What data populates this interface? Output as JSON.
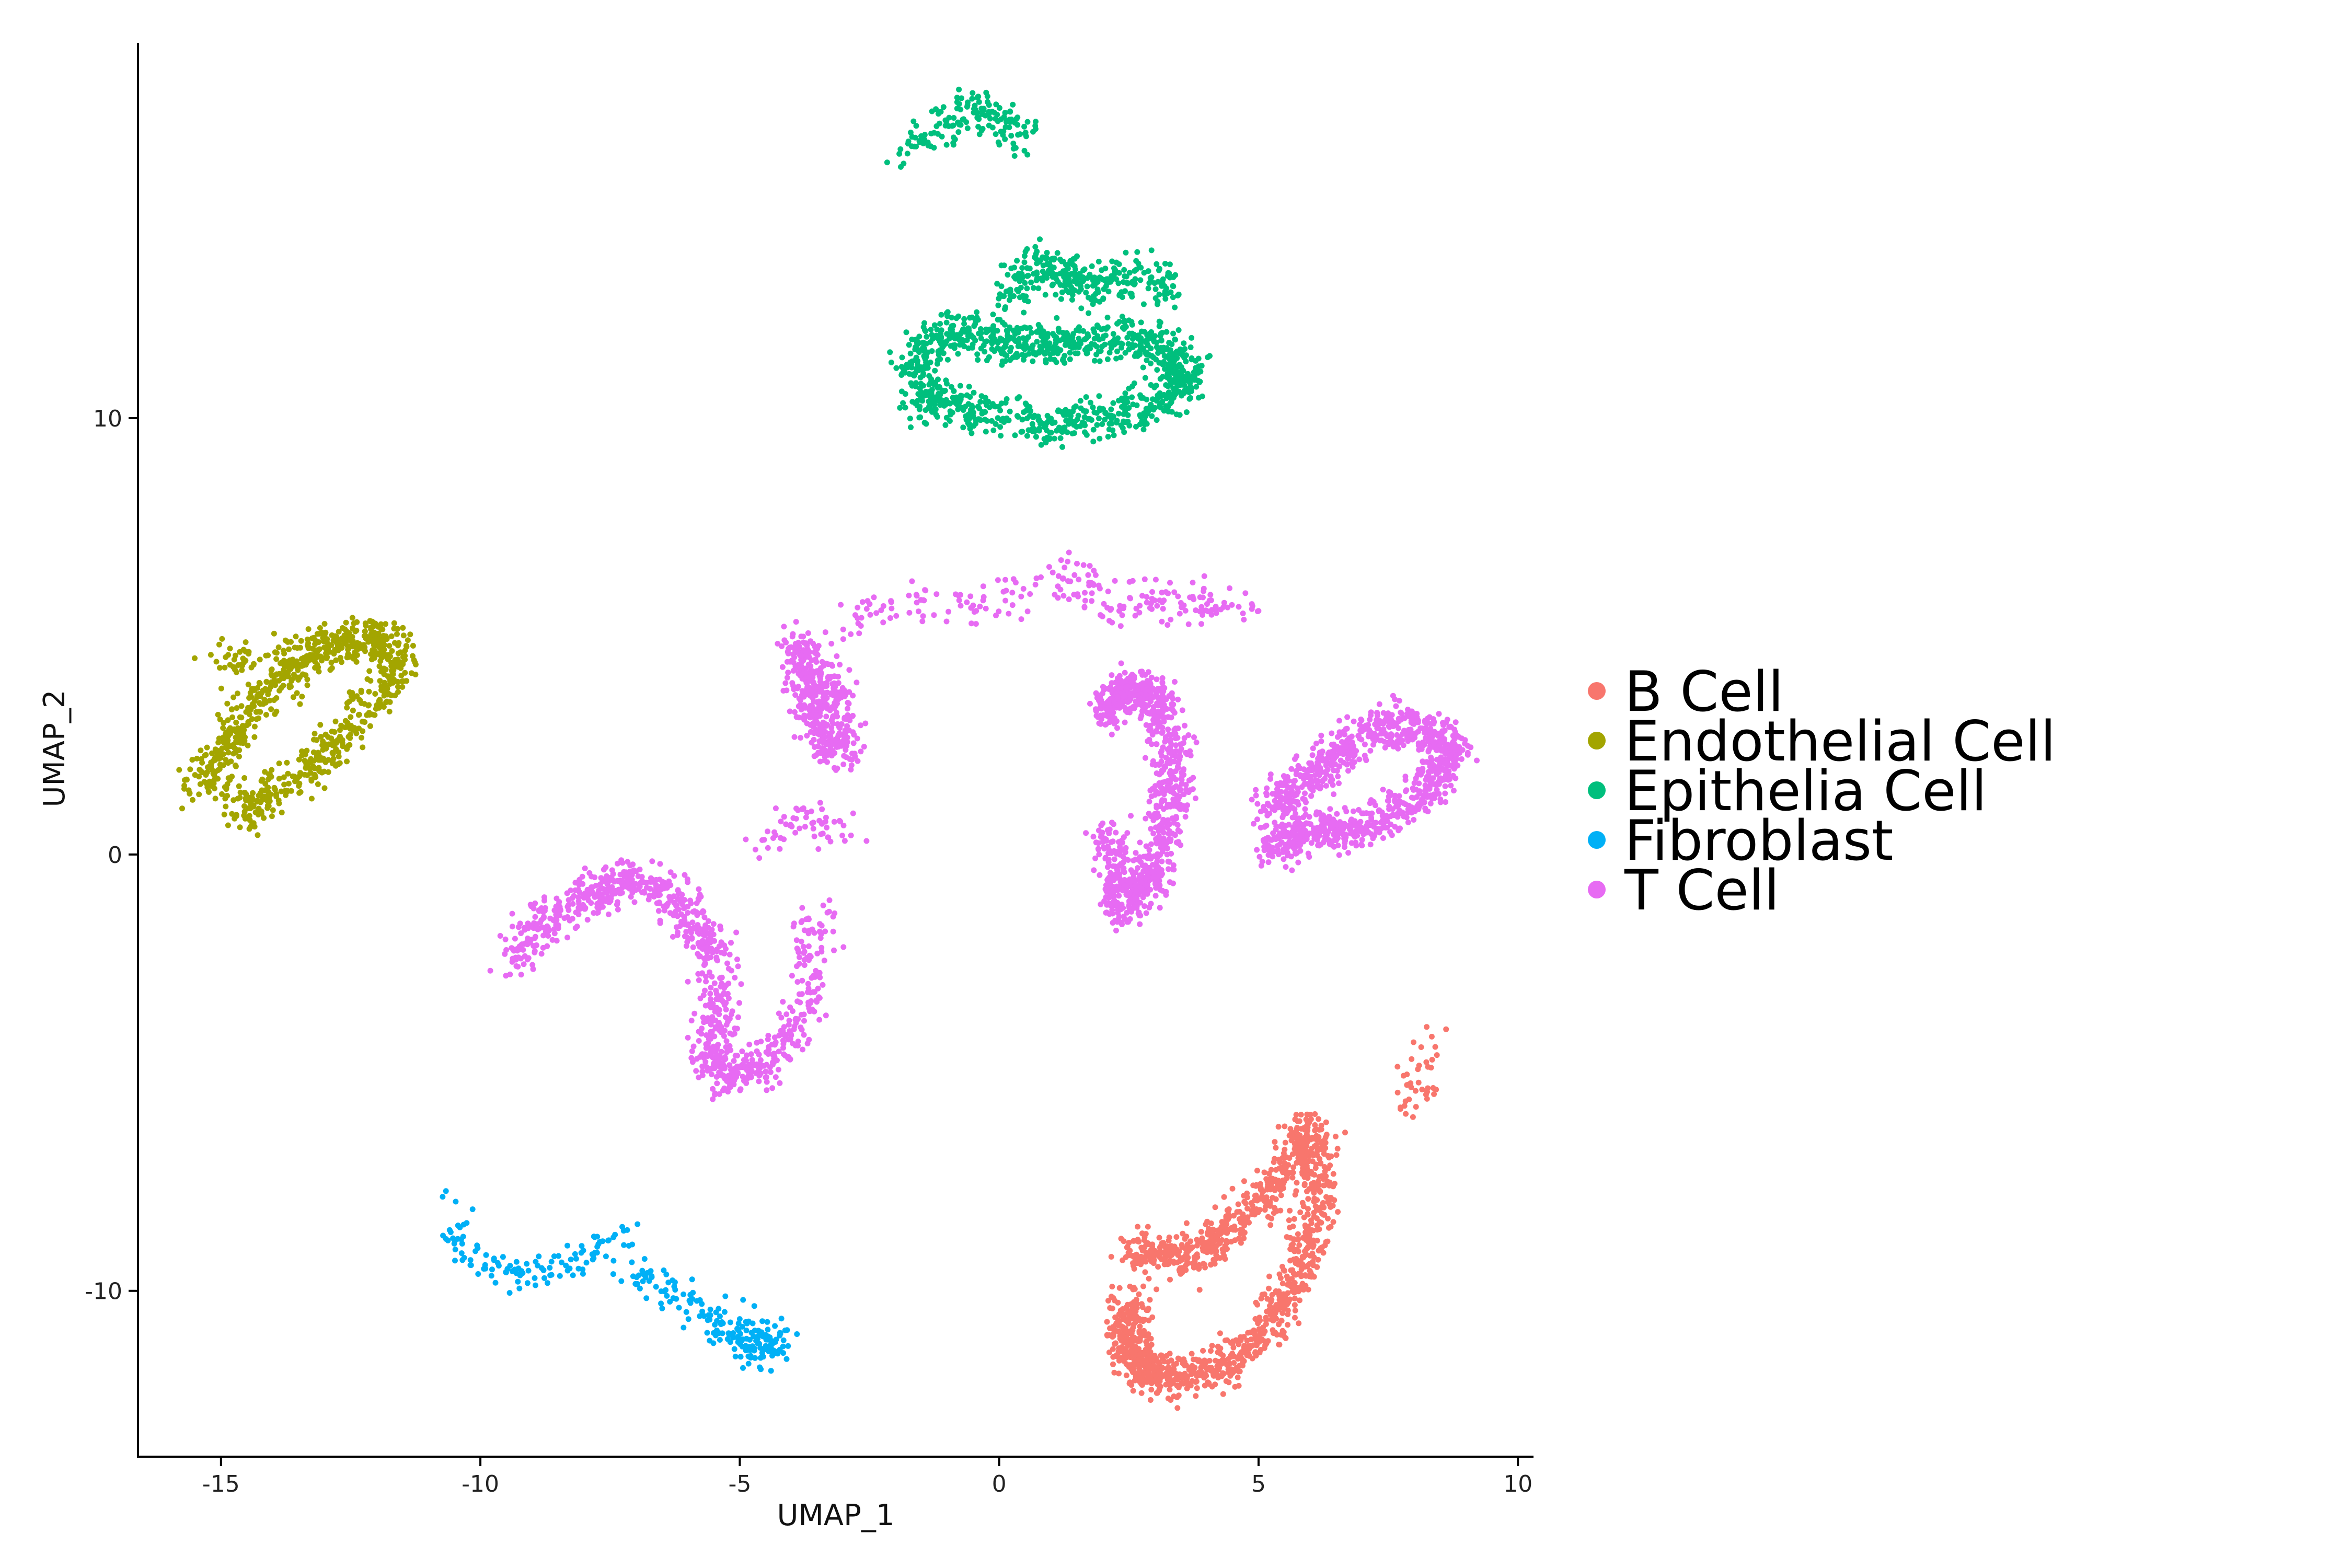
{
  "chart_data": {
    "type": "scatter",
    "xlabel": "UMAP_1",
    "ylabel": "UMAP_2",
    "xlim": [
      -16.6,
      10.3
    ],
    "ylim": [
      -13.8,
      18.6
    ],
    "xticks": [
      -15,
      -10,
      -5,
      0,
      5,
      10
    ],
    "xtick_labels": [
      "-15",
      "-10",
      "-5",
      "0",
      "5",
      "10"
    ],
    "yticks": [
      -10,
      0,
      10
    ],
    "ytick_labels": [
      "-10",
      "0",
      "10"
    ],
    "grid": false,
    "legend_position": "right",
    "series": [
      {
        "name": "B Cell",
        "color": "#F8766D",
        "clusters": [
          {
            "x": [
              2.6,
              3.5,
              4.5,
              5.4,
              6.0,
              6.2,
              5.8,
              5.2,
              4.3,
              3.4,
              2.8,
              2.4,
              2.6
            ],
            "y": [
              -9.0,
              -9.3,
              -8.6,
              -7.4,
              -6.2,
              -7.8,
              -9.6,
              -10.8,
              -11.8,
              -12.0,
              -11.8,
              -11.2,
              -10.2
            ],
            "n": 1500
          },
          {
            "x": [
              7.9,
              8.2,
              8.4,
              8.3,
              8.0,
              7.7
            ],
            "y": [
              -5.4,
              -4.2,
              -4.9,
              -5.2,
              -5.7,
              -5.9
            ],
            "n": 40
          }
        ]
      },
      {
        "name": "Endothelial Cell",
        "color": "#A3A500",
        "clusters": [
          {
            "x": [
              -15.4,
              -15.0,
              -14.5,
              -13.8,
              -13.0,
              -12.0,
              -11.5,
              -12.2,
              -13.0,
              -14.0,
              -14.8
            ],
            "y": [
              1.5,
              2.2,
              3.2,
              4.0,
              4.7,
              5.0,
              4.4,
              3.3,
              2.3,
              1.3,
              0.9
            ],
            "n": 800
          },
          {
            "x": [
              -15.2,
              -14.2,
              -13.2,
              -12.2,
              -11.8
            ],
            "y": [
              4.5,
              4.5,
              4.8,
              5.0,
              4.8
            ],
            "n": 120
          }
        ]
      },
      {
        "name": "Epithelia Cell",
        "color": "#00BF7D",
        "clusters": [
          {
            "x": [
              -1.8,
              -1.2,
              -0.6,
              0.0,
              0.5
            ],
            "y": [
              15.9,
              16.7,
              17.1,
              16.9,
              16.4
            ],
            "n": 160
          },
          {
            "x": [
              -1.8,
              -1.3,
              -0.5,
              0.4,
              1.3,
              2.5,
              3.3,
              3.6,
              3.4,
              2.4,
              1.2,
              0.0,
              -1.0,
              -1.6
            ],
            "y": [
              11.0,
              11.8,
              12.0,
              11.6,
              11.7,
              11.8,
              11.6,
              11.0,
              10.5,
              10.1,
              9.8,
              10.0,
              10.3,
              10.5
            ],
            "n": 1100
          },
          {
            "x": [
              0.1,
              0.5,
              0.9,
              1.3,
              1.6,
              2.1,
              2.8,
              3.4
            ],
            "y": [
              12.6,
              13.3,
              13.6,
              13.3,
              12.8,
              13.2,
              13.3,
              12.8
            ],
            "n": 300
          }
        ]
      },
      {
        "name": "Fibroblast",
        "color": "#00B0F6",
        "clusters": [
          {
            "x": [
              -10.5,
              -10.3,
              -9.6,
              -8.6,
              -7.8,
              -7.3
            ],
            "y": [
              -8.1,
              -9.2,
              -9.6,
              -9.5,
              -9.2,
              -8.7
            ],
            "n": 120
          },
          {
            "x": [
              -7.0,
              -6.3,
              -5.5,
              -4.8,
              -4.3,
              -4.6,
              -5.2
            ],
            "y": [
              -9.6,
              -10.1,
              -10.6,
              -11.0,
              -11.1,
              -11.5,
              -11.2
            ],
            "n": 200
          }
        ]
      },
      {
        "name": "T Cell",
        "color": "#E76BF3",
        "clusters": [
          {
            "x": [
              -3.9,
              -3.6,
              -3.2,
              -3.0,
              -3.5,
              -3.8
            ],
            "y": [
              4.7,
              4.3,
              3.6,
              2.3,
              2.8,
              3.9
            ],
            "n": 450
          },
          {
            "x": [
              -3.0,
              -2.2,
              -1.3,
              -0.4,
              0.5,
              1.3,
              1.8,
              2.3,
              2.9,
              3.4,
              4.1,
              5.0
            ],
            "y": [
              5.3,
              5.8,
              5.8,
              5.7,
              6.1,
              6.4,
              6.1,
              5.7,
              5.8,
              5.7,
              5.8,
              5.6
            ],
            "n": 220
          },
          {
            "x": [
              2.0,
              2.5,
              3.1,
              3.4,
              3.0,
              2.4,
              2.1
            ],
            "y": [
              3.2,
              3.8,
              3.5,
              1.5,
              -0.4,
              -1.3,
              0.5
            ],
            "n": 950
          },
          {
            "x": [
              5.2,
              6.1,
              7.0,
              8.0,
              8.8,
              8.3,
              7.0,
              6.0,
              5.2
            ],
            "y": [
              1.2,
              1.8,
              2.8,
              3.0,
              2.5,
              1.4,
              0.6,
              0.5,
              0.2
            ],
            "n": 1100
          },
          {
            "x": [
              -9.4,
              -8.8,
              -7.8,
              -7.1,
              -6.2,
              -5.6,
              -5.4,
              -5.5,
              -5.2,
              -4.5,
              -3.7,
              -3.5
            ],
            "y": [
              -2.5,
              -1.5,
              -1.0,
              -0.5,
              -0.9,
              -2.1,
              -3.4,
              -4.6,
              -5.1,
              -4.9,
              -3.6,
              -1.2
            ],
            "n": 950
          },
          {
            "x": [
              -4.5,
              -4.0,
              -3.4,
              -3.0
            ],
            "y": [
              0.3,
              0.8,
              0.8,
              0.4
            ],
            "n": 60
          }
        ]
      }
    ]
  }
}
